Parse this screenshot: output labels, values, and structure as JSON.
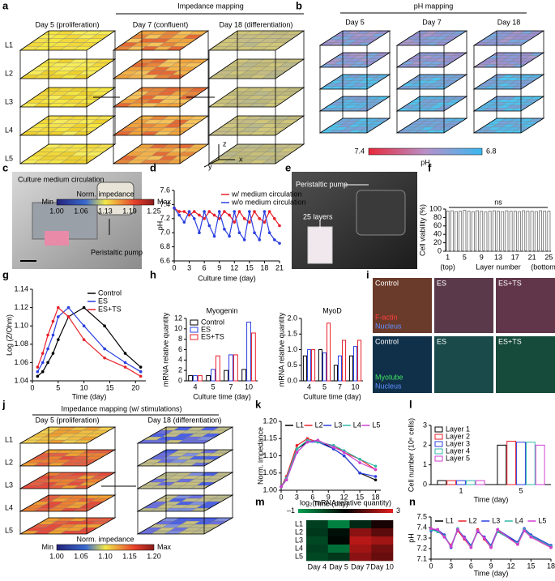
{
  "figure": {
    "panel_labels": [
      "a",
      "b",
      "c",
      "d",
      "e",
      "f",
      "g",
      "h",
      "i",
      "j",
      "k",
      "l",
      "m",
      "n"
    ],
    "stack_a": {
      "title": "Impedance mapping",
      "days": [
        "Day 5 (proliferation)",
        "Day 7 (confluent)",
        "Day 18 (differentiation)"
      ],
      "layers": [
        "L1",
        "L2",
        "L3",
        "L4",
        "L5"
      ],
      "axes": [
        "z",
        "y",
        "x"
      ],
      "colorbar_title": "Norm. impedance",
      "colorbar_min": "Min",
      "colorbar_max": "Max",
      "colorbar_ticks": [
        "1.00",
        "1.06",
        "1.13",
        "1.19",
        "1.25"
      ]
    },
    "stack_b": {
      "title": "pH mapping",
      "days": [
        "Day 5",
        "Day 7",
        "Day 18"
      ],
      "colorbar_ticks": [
        "7.4",
        "6.8"
      ],
      "colorbar_title": "pH"
    },
    "photo_c": {
      "labels": [
        "Culture medium circulation",
        "Peristaltic pump"
      ]
    },
    "photo_e": {
      "labels": [
        "Peristaltic pump",
        "25 layers"
      ]
    },
    "photo_i": {
      "columns": [
        "Control",
        "ES",
        "ES+TS"
      ],
      "stain_top": [
        "F-actin",
        "Nucleus"
      ],
      "stain_bottom": [
        "Myotube",
        "Nucleus"
      ]
    },
    "stack_j": {
      "title": "Impedance mapping (w/ stimulations)",
      "days": [
        "Day 5 (proliferation)",
        "Day 18 (differentiation)"
      ],
      "layers": [
        "L1",
        "L2",
        "L3",
        "L4",
        "L5"
      ],
      "colorbar_title": "Norm. impedance",
      "colorbar_min": "Min",
      "colorbar_max": "Max",
      "colorbar_ticks": [
        "1.00",
        "1.05",
        "1.10",
        "1.15",
        "1.20"
      ]
    }
  },
  "chart_data": [
    {
      "type": "line",
      "xlabel": "Culture time (day)",
      "ylabel": "pH",
      "legend": "upper right",
      "x": [
        0,
        1,
        2,
        3,
        4,
        5,
        6,
        7,
        8,
        9,
        10,
        11,
        12,
        13,
        14,
        15,
        16,
        17,
        18,
        19,
        20,
        21
      ],
      "xlim": [
        0,
        21
      ],
      "xticks": [
        0,
        3,
        6,
        9,
        12,
        15,
        18,
        21
      ],
      "ylim": [
        6.6,
        7.6
      ],
      "yticks": [
        6.6,
        6.8,
        {
          "value": 7,
          "label": "7.0"
        },
        7.2,
        7.4,
        7.6
      ],
      "series": [
        {
          "name": "w/ medium circulation",
          "color": "#e8202a",
          "values": [
            7.35,
            7.3,
            7.3,
            7.25,
            7.3,
            7.25,
            7.2,
            7.3,
            7.25,
            7.2,
            7.3,
            7.25,
            7.15,
            7.3,
            7.2,
            7.15,
            7.3,
            7.2,
            7.15,
            7.3,
            7.2,
            7.1
          ]
        },
        {
          "name": "w/o medium circulation",
          "color": "#2b3fe0",
          "values": [
            7.35,
            7.25,
            7.15,
            7.3,
            7.2,
            7.0,
            7.3,
            7.1,
            6.95,
            7.3,
            7.05,
            6.95,
            7.3,
            7.0,
            6.9,
            7.3,
            7.0,
            6.9,
            7.3,
            7.0,
            6.9,
            6.85
          ]
        }
      ]
    },
    {
      "type": "bar",
      "xlabel": "Layer number",
      "ylabel": "Cell viability (%)",
      "annotation": "ns",
      "x_notes": [
        "(top)",
        "(bottom)"
      ],
      "color": "#555555",
      "categories": [
        "1",
        null,
        null,
        null,
        "5",
        null,
        null,
        null,
        "9",
        null,
        null,
        null,
        "13",
        null,
        null,
        null,
        "17",
        null,
        null,
        null,
        "21",
        null,
        null,
        null,
        "25"
      ],
      "values": [
        95,
        96,
        94,
        95,
        97,
        95,
        94,
        96,
        95,
        93,
        95,
        96,
        95,
        94,
        96,
        95,
        95,
        94,
        96,
        95,
        95,
        94,
        96,
        95,
        95
      ],
      "ylim": [
        0,
        100
      ],
      "yticks": [
        0,
        20,
        40,
        60,
        80,
        100
      ]
    },
    {
      "type": "line",
      "xlabel": "Time (day)",
      "ylabel": "Log (Z/Ohm)",
      "legend": "upper right",
      "x": [
        1,
        2,
        3,
        4,
        5,
        7,
        10,
        14,
        18,
        21
      ],
      "xlim": [
        0,
        22
      ],
      "xticks": [
        0,
        5,
        10,
        15,
        20
      ],
      "ylim": [
        1.04,
        1.14
      ],
      "yticks": [
        1.04,
        1.06,
        1.08,
        {
          "value": 1.1,
          "label": "1.10"
        },
        1.12,
        1.14
      ],
      "series": [
        {
          "name": "Control",
          "color": "#000000",
          "values": [
            1.045,
            1.05,
            1.06,
            1.07,
            1.085,
            1.11,
            1.12,
            1.1,
            1.07,
            1.055
          ]
        },
        {
          "name": "ES",
          "color": "#2b3fe0",
          "values": [
            1.05,
            1.06,
            1.075,
            1.09,
            1.11,
            1.12,
            1.1,
            1.075,
            1.06,
            1.05
          ]
        },
        {
          "name": "ES+TS",
          "color": "#e8202a",
          "values": [
            1.055,
            1.07,
            1.09,
            1.105,
            1.12,
            1.11,
            1.085,
            1.065,
            1.055,
            1.045
          ]
        }
      ]
    },
    {
      "type": "bar",
      "title": "Myogenin",
      "xlabel": "Culture time (day)",
      "ylabel": "mRNA relative quantity",
      "legend": "upper left",
      "categories": [
        "4",
        "5",
        "7",
        "10"
      ],
      "ylim": [
        0,
        12
      ],
      "yticks": [
        0,
        2,
        4,
        6,
        8,
        10,
        12
      ],
      "series": [
        {
          "name": "Control",
          "color": "#000000",
          "values": [
            1,
            1,
            2,
            2.2
          ]
        },
        {
          "name": "ES",
          "color": "#2b3fe0",
          "values": [
            1,
            2.2,
            5,
            11.3
          ]
        },
        {
          "name": "ES+TS",
          "color": "#e8202a",
          "values": [
            1,
            4.8,
            5,
            9.2
          ]
        }
      ]
    },
    {
      "type": "bar",
      "title": "MyoD",
      "xlabel": "Culture time (day)",
      "ylabel": "mRNA relative quantity",
      "categories": [
        "4",
        "5",
        "7",
        "10"
      ],
      "ylim": [
        0,
        2
      ],
      "yticks": [
        {
          "value": 0,
          "label": "0.0"
        },
        0.5,
        {
          "value": 1,
          "label": "1.0"
        },
        1.5,
        {
          "value": 2,
          "label": "2.0"
        }
      ],
      "series": [
        {
          "color": "#000000",
          "values": [
            0.8,
            1,
            0.5,
            0.8
          ]
        },
        {
          "color": "#2b3fe0",
          "values": [
            1,
            0.9,
            0.8,
            1.1
          ]
        },
        {
          "color": "#e8202a",
          "values": [
            1,
            1.85,
            1.3,
            1.3
          ]
        }
      ]
    },
    {
      "type": "line",
      "xlabel": "Time (day)",
      "ylabel": "Norm. impedance",
      "legend": "top",
      "x": [
        0,
        1,
        3,
        5,
        7,
        10,
        12,
        15,
        18
      ],
      "xlim": [
        0,
        19
      ],
      "xticks": [
        0,
        3,
        6,
        9,
        12,
        15,
        18
      ],
      "ylim": [
        1,
        1.2
      ],
      "yticks": [
        {
          "value": 1,
          "label": "1.00"
        },
        1.05,
        {
          "value": 1.1,
          "label": "1.10"
        },
        1.15,
        {
          "value": 1.2,
          "label": "1.20"
        }
      ],
      "series": [
        {
          "name": "L1",
          "color": "#000000",
          "values": [
            1.01,
            1.03,
            1.12,
            1.14,
            1.145,
            1.12,
            1.1,
            1.05,
            1.03
          ]
        },
        {
          "name": "L2",
          "color": "#e8202a",
          "values": [
            1.01,
            1.04,
            1.13,
            1.15,
            1.14,
            1.13,
            1.11,
            1.09,
            1.06
          ]
        },
        {
          "name": "L3",
          "color": "#2b3fe0",
          "values": [
            1.01,
            1.03,
            1.11,
            1.14,
            1.14,
            1.12,
            1.1,
            1.05,
            1.04
          ]
        },
        {
          "name": "L4",
          "color": "#2fb8a8",
          "values": [
            1.01,
            1.035,
            1.12,
            1.145,
            1.14,
            1.13,
            1.115,
            1.09,
            1.07
          ]
        },
        {
          "name": "L5",
          "color": "#d23fd2",
          "values": [
            1.01,
            1.03,
            1.11,
            1.14,
            1.145,
            1.125,
            1.11,
            1.08,
            1.06
          ]
        }
      ]
    },
    {
      "type": "bar",
      "xlabel": "Time (day)",
      "ylabel": "Cell number (10⁶ cells)",
      "legend": "upper left",
      "categories": [
        "1",
        "5"
      ],
      "ylim": [
        0,
        3
      ],
      "yticks": [
        0,
        1,
        2,
        3
      ],
      "series": [
        {
          "name": "Layer 1",
          "color": "#000000",
          "values": [
            0.2,
            2
          ]
        },
        {
          "name": "Layer 2",
          "color": "#e8202a",
          "values": [
            0.2,
            2.2
          ]
        },
        {
          "name": "Layer 3",
          "color": "#2b3fe0",
          "values": [
            0.2,
            2.15
          ]
        },
        {
          "name": "Layer 4",
          "color": "#2fb8a8",
          "values": [
            0.2,
            2.15
          ]
        },
        {
          "name": "Layer 5",
          "color": "#d23fd2",
          "values": [
            0.2,
            2
          ]
        }
      ]
    },
    {
      "type": "heatmap",
      "colorbar_title": "log₂(mRNA relative quantity)",
      "zlim": [
        -1,
        3
      ],
      "zticks": [
        {
          "value": -1,
          "label": "–1"
        },
        3
      ],
      "rows": [
        "L1",
        "L2",
        "L3",
        "L4",
        "L5"
      ],
      "categories": [
        "Day 4",
        "Day 5",
        "Day 7",
        "Day 10"
      ],
      "values": [
        [
          0.2,
          -0.6,
          0.5,
          1.2
        ],
        [
          0.3,
          0.8,
          2.2,
          1.8
        ],
        [
          0.1,
          0.9,
          2.6,
          2.4
        ],
        [
          0.2,
          -0.4,
          2.4,
          2
        ],
        [
          0.1,
          0.3,
          2.2,
          1.9
        ]
      ]
    },
    {
      "type": "line",
      "xlabel": "Time (day)",
      "ylabel": "pH",
      "legend": "top",
      "x": [
        0,
        1,
        2,
        3,
        4,
        5,
        6,
        7,
        8,
        9,
        10,
        13,
        14,
        15,
        18
      ],
      "xlim": [
        0,
        18
      ],
      "xticks": [
        0,
        3,
        6,
        9,
        12,
        15,
        18
      ],
      "ylim": [
        7.1,
        7.5
      ],
      "yticks": [
        7.1,
        7.2,
        7.3,
        7.4,
        7.5
      ],
      "series": [
        {
          "name": "L1",
          "color": "#000000",
          "values": [
            7.38,
            7.38,
            7.32,
            7.22,
            7.38,
            7.3,
            7.22,
            7.37,
            7.3,
            7.22,
            7.38,
            7.25,
            7.38,
            7.32,
            7.22
          ]
        },
        {
          "name": "L2",
          "color": "#e8202a",
          "values": [
            7.39,
            7.37,
            7.31,
            7.23,
            7.37,
            7.29,
            7.21,
            7.38,
            7.29,
            7.21,
            7.37,
            7.24,
            7.37,
            7.31,
            7.21
          ]
        },
        {
          "name": "L3",
          "color": "#2b3fe0",
          "values": [
            7.37,
            7.38,
            7.33,
            7.21,
            7.38,
            7.31,
            7.23,
            7.36,
            7.31,
            7.23,
            7.38,
            7.26,
            7.39,
            7.33,
            7.23
          ]
        },
        {
          "name": "L4",
          "color": "#2fb8a8",
          "values": [
            7.38,
            7.36,
            7.32,
            7.22,
            7.39,
            7.3,
            7.22,
            7.37,
            7.3,
            7.22,
            7.36,
            7.25,
            7.38,
            7.32,
            7.22
          ]
        },
        {
          "name": "L5",
          "color": "#d23fd2",
          "values": [
            7.39,
            7.38,
            7.31,
            7.22,
            7.38,
            7.3,
            7.21,
            7.37,
            7.3,
            7.21,
            7.38,
            7.24,
            7.37,
            7.31,
            7.21
          ]
        }
      ]
    }
  ]
}
